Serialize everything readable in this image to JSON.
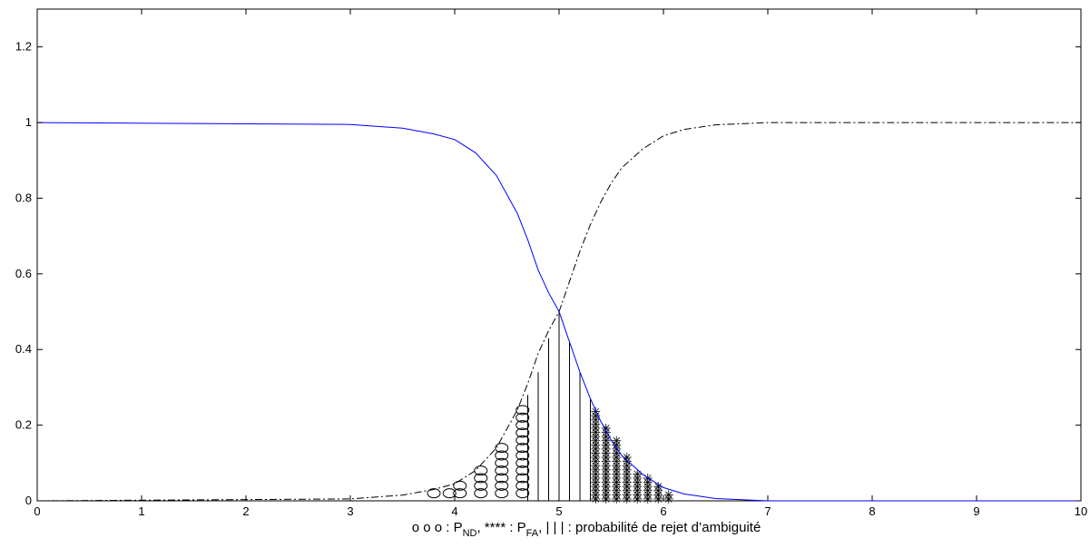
{
  "chart_data": {
    "type": "line",
    "xlim": [
      0,
      10
    ],
    "ylim": [
      0,
      1.3
    ],
    "x_ticks": [
      "0",
      "1",
      "2",
      "3",
      "4",
      "5",
      "6",
      "7",
      "8",
      "9",
      "10"
    ],
    "y_ticks": [
      "0",
      "0.2",
      "0.4",
      "0.6",
      "0.8",
      "1",
      "1.2"
    ],
    "xlabel": {
      "part1": "o o o : P",
      "sub1": "ND",
      "part2": ",  **** : P",
      "sub2": "FA",
      "part3": ",  | | | : probabilité de rejet d’ambiguité"
    },
    "series": [
      {
        "style": "solid",
        "color": "#0000ff",
        "description_values": "decreasing logistic, ~1 for x<3.5, 0.5 at x=5, ~0 for x>6.7",
        "x": [
          0,
          3.0,
          3.5,
          3.8,
          4.0,
          4.2,
          4.4,
          4.6,
          4.7,
          4.8,
          4.9,
          5.0,
          5.1,
          5.2,
          5.3,
          5.4,
          5.5,
          5.6,
          5.8,
          6.0,
          6.2,
          6.5,
          7.0,
          10
        ],
        "y": [
          1.0,
          0.995,
          0.985,
          0.97,
          0.955,
          0.92,
          0.86,
          0.76,
          0.69,
          0.61,
          0.55,
          0.5,
          0.42,
          0.34,
          0.27,
          0.21,
          0.16,
          0.12,
          0.07,
          0.035,
          0.018,
          0.006,
          0.0,
          0.0
        ]
      },
      {
        "style": "dash-dot",
        "color": "#000000",
        "x": [
          0,
          3.0,
          3.5,
          3.8,
          4.0,
          4.2,
          4.4,
          4.6,
          4.7,
          4.8,
          4.9,
          5.0,
          5.1,
          5.2,
          5.3,
          5.4,
          5.5,
          5.6,
          5.8,
          6.0,
          6.2,
          6.5,
          7.0,
          10
        ],
        "y": [
          0.0,
          0.005,
          0.015,
          0.03,
          0.045,
          0.08,
          0.14,
          0.24,
          0.31,
          0.39,
          0.45,
          0.5,
          0.58,
          0.66,
          0.73,
          0.79,
          0.84,
          0.88,
          0.93,
          0.965,
          0.982,
          0.994,
          1.0,
          1.0
        ]
      }
    ],
    "markers_nd": {
      "marker": "o",
      "columns": [
        {
          "x": 3.8,
          "top": 0.02
        },
        {
          "x": 3.95,
          "top": 0.02
        },
        {
          "x": 4.05,
          "top": 0.04
        },
        {
          "x": 4.25,
          "top": 0.08
        },
        {
          "x": 4.45,
          "top": 0.14
        },
        {
          "x": 4.65,
          "top": 0.24
        }
      ]
    },
    "ambiguity_lines": {
      "marker": "|",
      "columns": [
        {
          "x": 4.7,
          "top": 0.28
        },
        {
          "x": 4.8,
          "top": 0.34
        },
        {
          "x": 4.9,
          "top": 0.43
        },
        {
          "x": 5.0,
          "top": 0.5
        },
        {
          "x": 5.1,
          "top": 0.42
        },
        {
          "x": 5.2,
          "top": 0.34
        },
        {
          "x": 5.3,
          "top": 0.27
        }
      ]
    },
    "markers_fa": {
      "marker": "*",
      "columns": [
        {
          "x": 5.35,
          "top": 0.24
        },
        {
          "x": 5.45,
          "top": 0.2
        },
        {
          "x": 5.55,
          "top": 0.16
        },
        {
          "x": 5.65,
          "top": 0.12
        },
        {
          "x": 5.75,
          "top": 0.08
        },
        {
          "x": 5.85,
          "top": 0.06
        },
        {
          "x": 5.95,
          "top": 0.04
        },
        {
          "x": 6.05,
          "top": 0.02
        }
      ]
    }
  }
}
